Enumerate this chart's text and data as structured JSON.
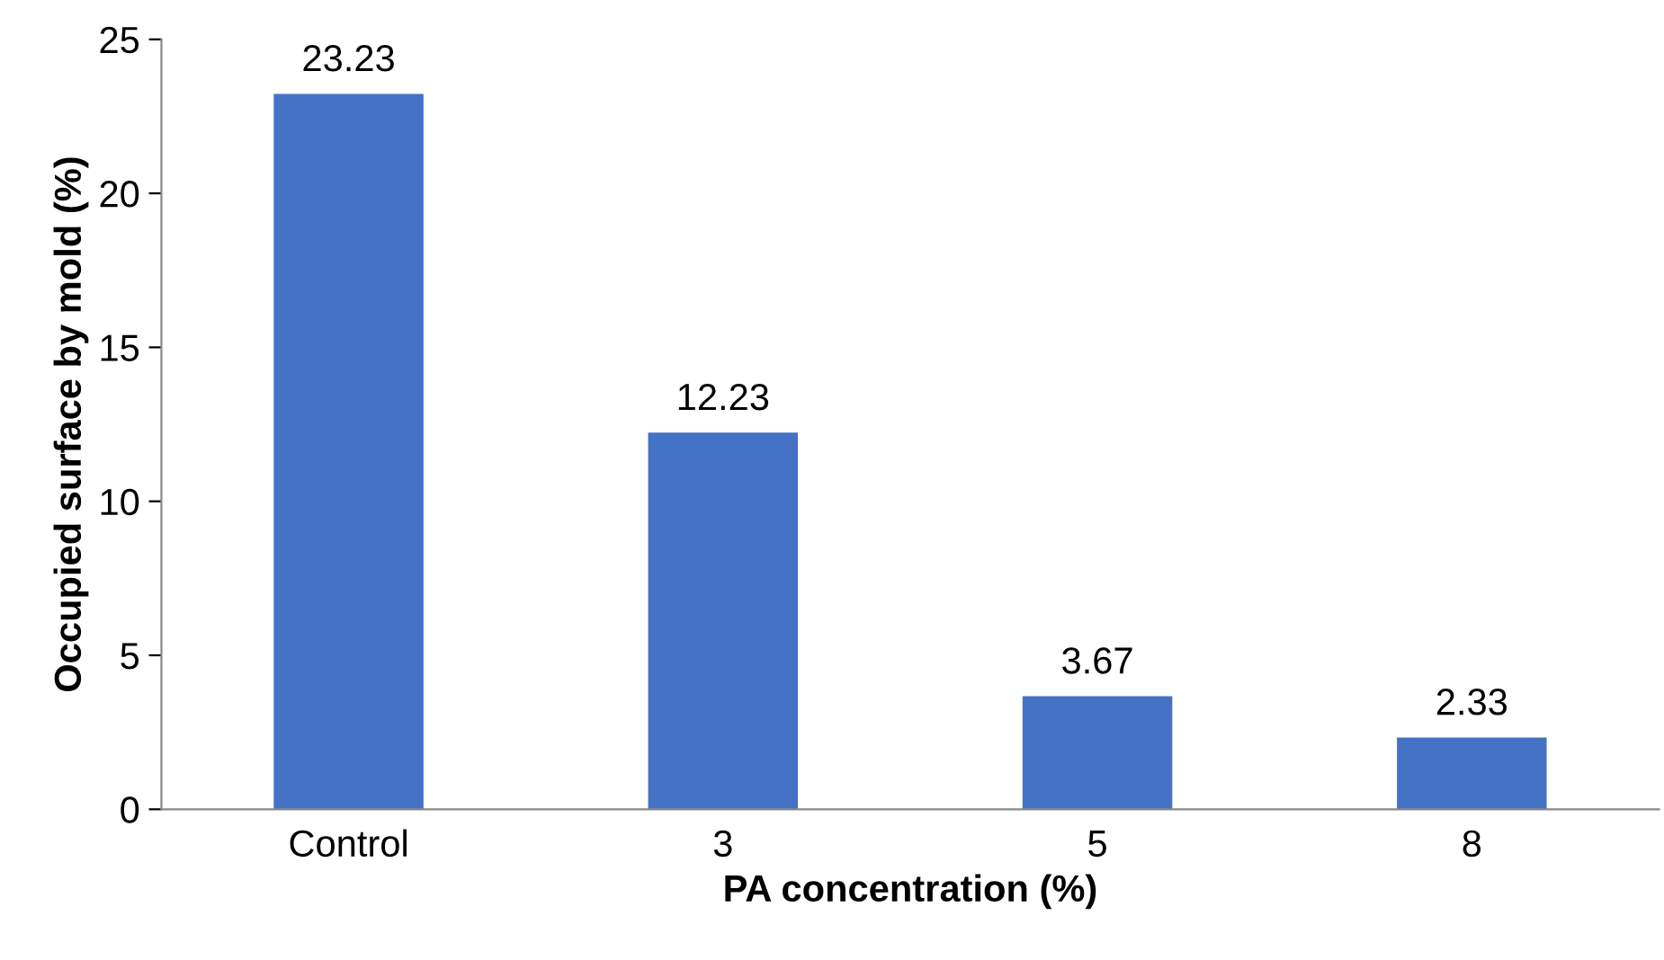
{
  "chart_data": {
    "type": "bar",
    "xlabel": "PA concentration (%)",
    "ylabel": "Occupied surface by mold (%)",
    "categories": [
      "Control",
      "3",
      "5",
      "8"
    ],
    "values": [
      23.23,
      12.23,
      3.67,
      2.33
    ],
    "color": "#4472c4",
    "ylim": [
      0,
      25
    ],
    "yticks": [
      0,
      5,
      10,
      15,
      20,
      25
    ],
    "grid": false,
    "data_labels": true,
    "legend": false
  }
}
